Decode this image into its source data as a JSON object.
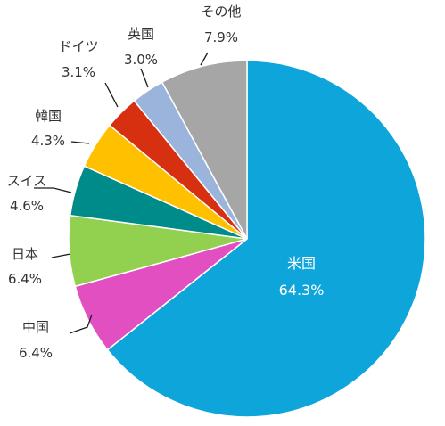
{
  "chart_data": {
    "type": "pie",
    "title": "",
    "slices": [
      {
        "label": "米国",
        "value_label": "64.3%",
        "value": 64.3,
        "color": "#0ea5db"
      },
      {
        "label": "中国",
        "value_label": "6.4%",
        "value": 6.4,
        "color": "#e24fc1"
      },
      {
        "label": "日本",
        "value_label": "6.4%",
        "value": 6.4,
        "color": "#92d050"
      },
      {
        "label": "スイス",
        "value_label": "4.6%",
        "value": 4.6,
        "color": "#008b8b"
      },
      {
        "label": "韓国",
        "value_label": "4.3%",
        "value": 4.3,
        "color": "#ffc000"
      },
      {
        "label": "ドイツ",
        "value_label": "3.1%",
        "value": 3.1,
        "color": "#d63010"
      },
      {
        "label": "英国",
        "value_label": "3.0%",
        "value": 3.0,
        "color": "#9bb4dc"
      },
      {
        "label": "その他",
        "value_label": "7.9%",
        "value": 7.9,
        "color": "#a6a6a6"
      }
    ],
    "start_angle_deg": 0,
    "direction": "clockwise",
    "legend": "none",
    "labels": "outside-with-leaders"
  }
}
